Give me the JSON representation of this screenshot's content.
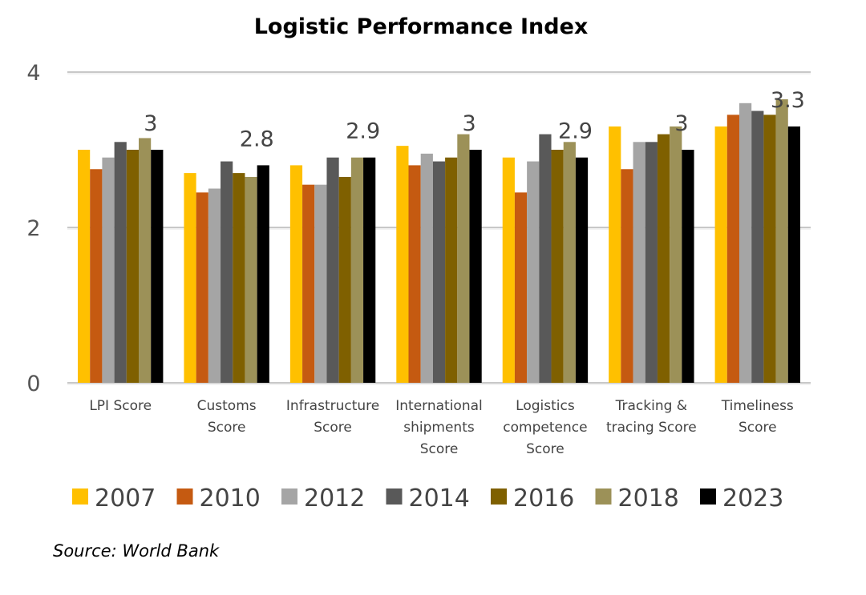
{
  "chart_data": {
    "type": "bar",
    "title": "Logistic Performance Index",
    "categories": [
      [
        "LPI Score"
      ],
      [
        "Customs",
        "Score"
      ],
      [
        "Infrastructure",
        "Score"
      ],
      [
        "International",
        "shipments",
        "Score"
      ],
      [
        "Logistics",
        "competence",
        "Score"
      ],
      [
        "Tracking &",
        "tracing Score"
      ],
      [
        "Timeliness",
        "Score"
      ]
    ],
    "series": [
      {
        "name": "2007",
        "color": "#FFC000",
        "values": [
          3.0,
          2.7,
          2.8,
          3.05,
          2.9,
          3.3,
          3.3
        ]
      },
      {
        "name": "2010",
        "color": "#C55A11",
        "values": [
          2.75,
          2.45,
          2.55,
          2.8,
          2.45,
          2.75,
          3.45
        ]
      },
      {
        "name": "2012",
        "color": "#A5A5A5",
        "values": [
          2.9,
          2.5,
          2.55,
          2.95,
          2.85,
          3.1,
          3.6
        ]
      },
      {
        "name": "2014",
        "color": "#595959",
        "values": [
          3.1,
          2.85,
          2.9,
          2.85,
          3.2,
          3.1,
          3.5
        ]
      },
      {
        "name": "2016",
        "color": "#7F6000",
        "values": [
          3.0,
          2.7,
          2.65,
          2.9,
          3.0,
          3.2,
          3.45
        ]
      },
      {
        "name": "2018",
        "color": "#9C9158",
        "values": [
          3.15,
          2.65,
          2.9,
          3.2,
          3.1,
          3.3,
          3.65
        ]
      },
      {
        "name": "2023",
        "color": "#000000",
        "values": [
          3.0,
          2.8,
          2.9,
          3.0,
          2.9,
          3.0,
          3.3
        ]
      }
    ],
    "data_labels": [
      "3",
      "2.8",
      "2.9",
      "3",
      "2.9",
      "3",
      "3.3"
    ],
    "yticks": [
      "0",
      "2",
      "4"
    ],
    "ylim": [
      0,
      4
    ],
    "grid": true,
    "legend": "bottom"
  },
  "source": "Source: World Bank"
}
